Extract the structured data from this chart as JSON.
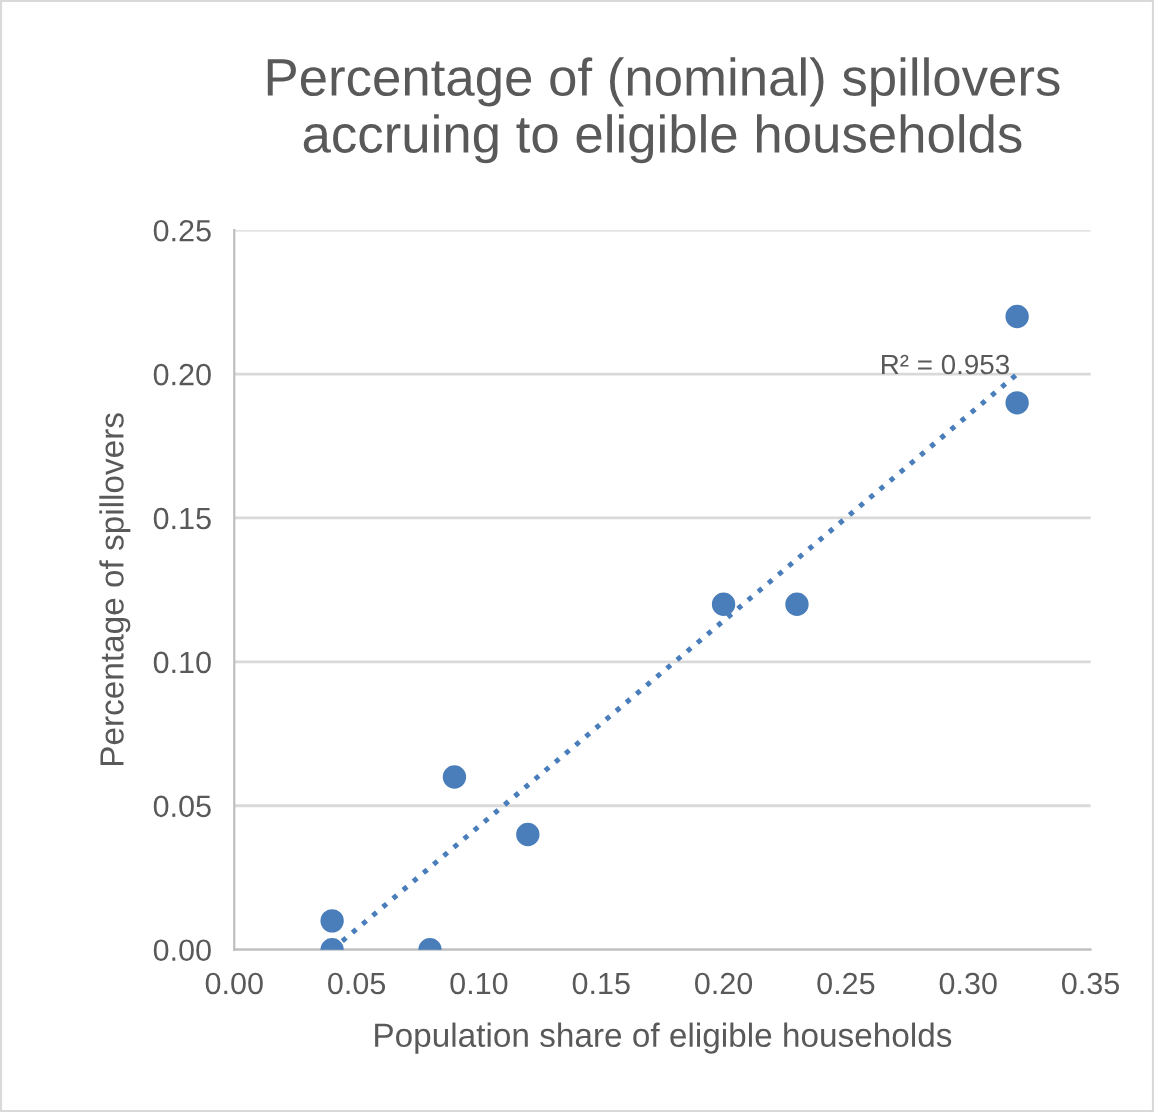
{
  "chart_data": {
    "type": "scatter",
    "title": "Percentage of (nominal) spillovers\naccruing to eligible households",
    "xlabel": "Population share of eligible households",
    "ylabel": "Percentage of spillovers",
    "x": [
      0.04,
      0.04,
      0.08,
      0.09,
      0.12,
      0.2,
      0.23,
      0.32,
      0.32
    ],
    "series": [
      {
        "color": "#4a7ebb",
        "values": [
          0.01,
          0.0,
          0.0,
          0.06,
          0.04,
          0.12,
          0.12,
          0.22,
          0.19
        ],
        "marker": "circle"
      },
      {
        "type": "line",
        "color": "#4a7ebb",
        "line_style": "dotted",
        "x": [
          0.04,
          0.32
        ],
        "values": [
          0.0,
          0.2
        ]
      }
    ],
    "annotations": [
      "R² = 0.953"
    ],
    "xlim": [
      0.0,
      0.35
    ],
    "xticks": [
      {
        "value": 0,
        "label": "0.00"
      },
      {
        "value": 0.05,
        "label": "0.05"
      },
      {
        "value": 0.1,
        "label": "0.10"
      },
      {
        "value": 0.15,
        "label": "0.15"
      },
      {
        "value": 0.2,
        "label": "0.20"
      },
      {
        "value": 0.25,
        "label": "0.25"
      },
      {
        "value": 0.3,
        "label": "0.30"
      },
      {
        "value": 0.35,
        "label": "0.35"
      }
    ],
    "ylim": [
      0.0,
      0.25
    ],
    "yticks": [
      {
        "value": 0,
        "label": "0.00"
      },
      {
        "value": 0.05,
        "label": "0.05"
      },
      {
        "value": 0.1,
        "label": "0.10"
      },
      {
        "value": 0.15,
        "label": "0.15"
      },
      {
        "value": 0.2,
        "label": "0.20"
      },
      {
        "value": 0.25,
        "label": "0.25"
      }
    ],
    "grid": "y",
    "legend": false
  }
}
